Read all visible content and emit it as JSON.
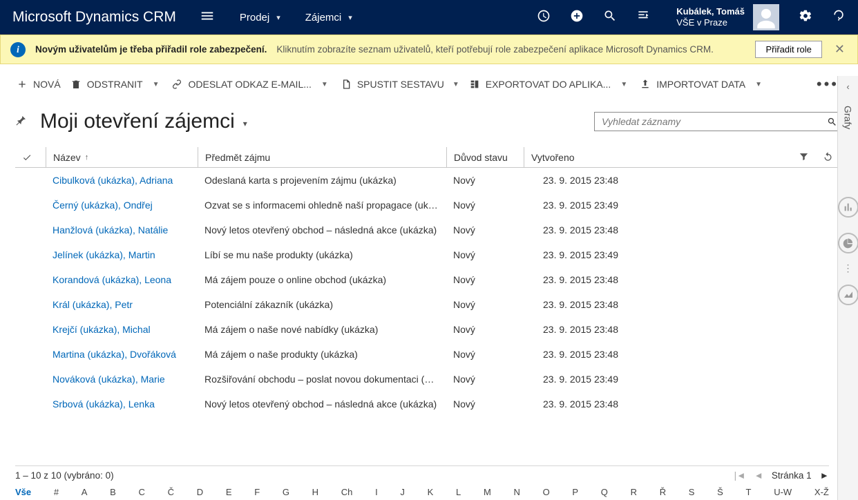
{
  "brand": "Microsoft Dynamics CRM",
  "nav": {
    "item1": "Prodej",
    "item2": "Zájemci"
  },
  "user": {
    "name": "Kubálek, Tomáš",
    "org": "VŠE v Praze"
  },
  "notif": {
    "bold": "Novým uživatelům je třeba přiřadil role zabezpečení.",
    "desc": "Kliknutím zobrazíte seznam uživatelů, kteří potřebují role zabezpečení aplikace Microsoft Dynamics CRM.",
    "button": "Přiřadit role"
  },
  "cmd": {
    "new": "NOVÁ",
    "delete": "ODSTRANIT",
    "email": "ODESLAT ODKAZ E-MAIL...",
    "report": "SPUSTIT SESTAVU",
    "export": "EXPORTOVAT DO APLIKA...",
    "import": "IMPORTOVAT DATA"
  },
  "view": {
    "title": "Moji otevření zájemci",
    "search_ph": "Vyhledat záznamy"
  },
  "cols": {
    "name": "Název",
    "subject": "Předmět zájmu",
    "reason": "Důvod stavu",
    "created": "Vytvořeno"
  },
  "rows": [
    {
      "name": "Cibulková (ukázka), Adriana",
      "subject": "Odeslaná karta s projevením zájmu (ukázka)",
      "reason": "Nový",
      "created": "23. 9. 2015 23:48"
    },
    {
      "name": "Černý (ukázka), Ondřej",
      "subject": "Ozvat se s informacemi ohledně naší propagace (ukázka)",
      "reason": "Nový",
      "created": "23. 9. 2015 23:49"
    },
    {
      "name": "Hanžlová (ukázka), Natálie",
      "subject": "Nový letos otevřený obchod – následná akce (ukázka)",
      "reason": "Nový",
      "created": "23. 9. 2015 23:48"
    },
    {
      "name": "Jelínek (ukázka), Martin",
      "subject": "Líbí se mu naše produkty (ukázka)",
      "reason": "Nový",
      "created": "23. 9. 2015 23:49"
    },
    {
      "name": "Korandová (ukázka), Leona",
      "subject": "Má zájem pouze o online obchod (ukázka)",
      "reason": "Nový",
      "created": "23. 9. 2015 23:48"
    },
    {
      "name": "Král (ukázka), Petr",
      "subject": "Potenciální zákazník (ukázka)",
      "reason": "Nový",
      "created": "23. 9. 2015 23:48"
    },
    {
      "name": "Krejčí (ukázka), Michal",
      "subject": "Má zájem o naše nové nabídky (ukázka)",
      "reason": "Nový",
      "created": "23. 9. 2015 23:48"
    },
    {
      "name": "Martina (ukázka), Dvořáková",
      "subject": "Má zájem o naše produkty (ukázka)",
      "reason": "Nový",
      "created": "23. 9. 2015 23:48"
    },
    {
      "name": "Nováková (ukázka), Marie",
      "subject": "Rozšiřování obchodu – poslat novou dokumentaci (ukáz...",
      "reason": "Nový",
      "created": "23. 9. 2015 23:49"
    },
    {
      "name": "Srbová (ukázka), Lenka",
      "subject": "Nový letos otevřený obchod – následná akce (ukázka)",
      "reason": "Nový",
      "created": "23. 9. 2015 23:48"
    }
  ],
  "footer": {
    "count": "1 – 10  z 10 (vybráno: 0)",
    "page": "Stránka 1"
  },
  "alpha": [
    "Vše",
    "#",
    "A",
    "B",
    "C",
    "Č",
    "D",
    "E",
    "F",
    "G",
    "H",
    "Ch",
    "I",
    "J",
    "K",
    "L",
    "M",
    "N",
    "O",
    "P",
    "Q",
    "R",
    "Ř",
    "S",
    "Š",
    "T",
    "U-W",
    "X-Ž"
  ],
  "rside": {
    "label": "Grafy"
  }
}
